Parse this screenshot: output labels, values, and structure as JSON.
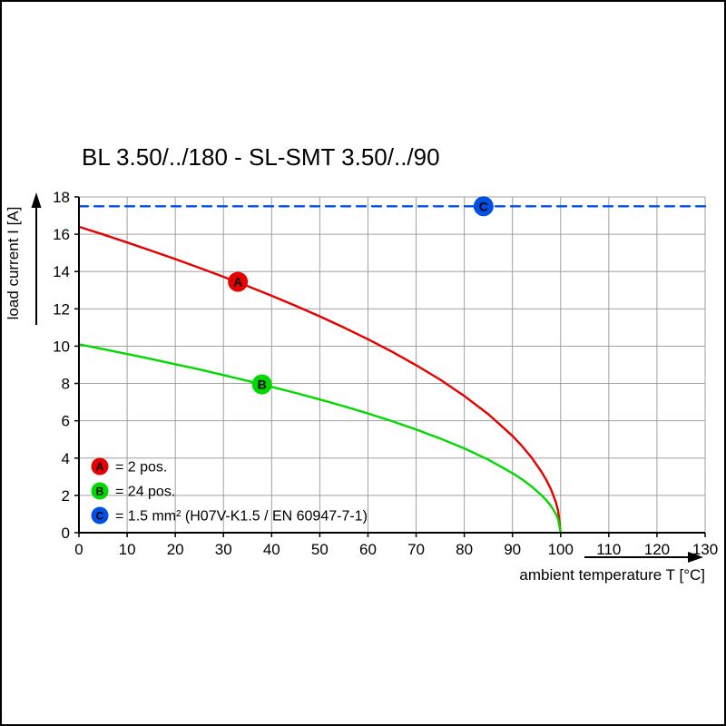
{
  "page": {
    "title": "BL 3.50/../180 - SL-SMT 3.50/../90"
  },
  "chart_data": {
    "type": "line",
    "title": "BL 3.50/../180 - SL-SMT 3.50/../90",
    "xlabel": "ambient temperature T [°C]",
    "ylabel": "load current I [A]",
    "xlim": [
      0,
      130
    ],
    "ylim": [
      0,
      18
    ],
    "xtick_step": 10,
    "ytick_step": 2,
    "grid": true,
    "grid_color": "#a0a0a0",
    "axis_color": "#000000",
    "legend_position": "bottom-left-inside",
    "series": [
      {
        "id": "A",
        "legend": "= 2 pos.",
        "color": "#e60000",
        "line_style": "solid",
        "marker": {
          "x": 33,
          "y": 13.45,
          "letter": "A"
        },
        "points": [
          [
            0,
            16.4
          ],
          [
            5,
            15.99
          ],
          [
            10,
            15.56
          ],
          [
            15,
            15.12
          ],
          [
            20,
            14.67
          ],
          [
            25,
            14.2
          ],
          [
            30,
            13.72
          ],
          [
            35,
            13.22
          ],
          [
            40,
            12.7
          ],
          [
            45,
            12.16
          ],
          [
            50,
            11.6
          ],
          [
            55,
            11.0
          ],
          [
            60,
            10.37
          ],
          [
            65,
            9.7
          ],
          [
            70,
            8.98
          ],
          [
            75,
            8.2
          ],
          [
            80,
            7.33
          ],
          [
            85,
            6.35
          ],
          [
            90,
            5.19
          ],
          [
            92,
            4.64
          ],
          [
            94,
            4.02
          ],
          [
            96,
            3.28
          ],
          [
            97,
            2.84
          ],
          [
            98,
            2.32
          ],
          [
            99,
            1.64
          ],
          [
            99.5,
            1.16
          ],
          [
            100,
            0
          ]
        ]
      },
      {
        "id": "B",
        "legend": "= 24 pos.",
        "color": "#00d900",
        "line_style": "solid",
        "marker": {
          "x": 38,
          "y": 7.95,
          "letter": "B"
        },
        "points": [
          [
            0,
            10.1
          ],
          [
            5,
            9.84
          ],
          [
            10,
            9.58
          ],
          [
            15,
            9.31
          ],
          [
            20,
            9.03
          ],
          [
            25,
            8.75
          ],
          [
            30,
            8.45
          ],
          [
            35,
            8.14
          ],
          [
            40,
            7.82
          ],
          [
            45,
            7.49
          ],
          [
            50,
            7.14
          ],
          [
            55,
            6.78
          ],
          [
            60,
            6.39
          ],
          [
            65,
            5.98
          ],
          [
            70,
            5.53
          ],
          [
            75,
            5.05
          ],
          [
            80,
            4.52
          ],
          [
            85,
            3.91
          ],
          [
            90,
            3.19
          ],
          [
            92,
            2.86
          ],
          [
            94,
            2.47
          ],
          [
            96,
            2.02
          ],
          [
            97,
            1.75
          ],
          [
            98,
            1.43
          ],
          [
            99,
            1.01
          ],
          [
            99.5,
            0.71
          ],
          [
            100,
            0
          ]
        ]
      },
      {
        "id": "C",
        "legend": "= 1.5 mm² (H07V-K1.5 / EN 60947-7-1)",
        "color": "#0050e6",
        "line_style": "dashed",
        "marker": {
          "x": 84,
          "y": 17.5,
          "letter": "C"
        },
        "points": [
          [
            0,
            17.5
          ],
          [
            130,
            17.5
          ]
        ]
      }
    ]
  }
}
